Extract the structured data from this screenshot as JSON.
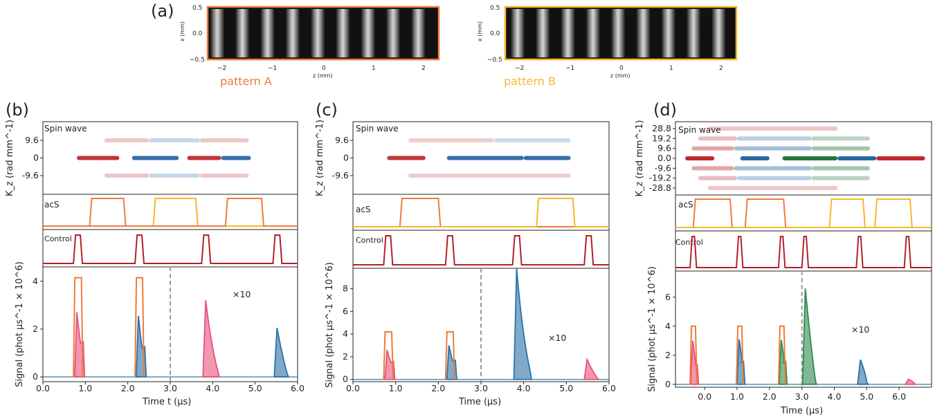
{
  "colors": {
    "pattern_a": "#f0793a",
    "pattern_b": "#f8b72a",
    "control": "#b22028",
    "pink": "#e8517a",
    "blue": "#2a72a8",
    "green": "#2e8a4e",
    "dashed": "#999999"
  },
  "top": {
    "panel_label": "(a)",
    "images": [
      {
        "caption": "pattern A",
        "border": "orange",
        "xlabel": "z (mm)",
        "ylabel": "x (mm)",
        "xticks": [
          "−2",
          "−1",
          "0",
          "1",
          "2"
        ],
        "yticks": [
          "0.5",
          "0.0",
          "−0.5"
        ]
      },
      {
        "caption": "pattern B",
        "border": "gold",
        "xlabel": "z (mm)",
        "ylabel": "x (mm)",
        "xticks": [
          "−2",
          "−1",
          "0",
          "1",
          "2"
        ],
        "yticks": [
          "0.5",
          "0.0",
          "−0.5"
        ]
      }
    ]
  },
  "panels": [
    {
      "label": "(b)",
      "spin_label": "Spin wave",
      "acs_label": "acS",
      "control_label": "Control",
      "kz_ticks": [
        "9.6",
        "0",
        "-9.6"
      ],
      "kz_ylabel": "K_z (rad mm^-1)",
      "signal_ylabel": "Signal (phot µs^-1 × 10^6)",
      "xlabel": "Time t (µs)",
      "xticks": [
        "0.0",
        "1.0",
        "2.0",
        "3.0",
        "4.0",
        "5.0",
        "6.0"
      ],
      "yticks": [
        "0",
        "2",
        "4"
      ],
      "multiplier": "×10"
    },
    {
      "label": "(c)",
      "spin_label": "Spin wave",
      "acs_label": "acS",
      "control_label": "Control",
      "kz_ticks": [
        "9.6",
        "0",
        "-9.6"
      ],
      "kz_ylabel": "K_z (rad mm^-1)",
      "signal_ylabel": "Signal (phot µs^-1 × 10^6)",
      "xlabel": "Time (µs)",
      "xticks": [
        "0.0",
        "1.0",
        "2.0",
        "3.0",
        "4.0",
        "5.0",
        "6.0"
      ],
      "yticks": [
        "0",
        "2",
        "4",
        "6",
        "8"
      ],
      "multiplier": "×10"
    },
    {
      "label": "(d)",
      "spin_label": "Spin wave",
      "acs_label": "acS",
      "control_label": "Control",
      "kz_ticks": [
        "28.8",
        "19.2",
        "9.6",
        "0.0",
        "-9.6",
        "-19.2",
        "-28.8"
      ],
      "kz_ylabel": "K_z (rad mm^-1)",
      "signal_ylabel": "Signal (phot µs^-1 × 10^6)",
      "xlabel": "Time (µs)",
      "xticks": [
        "0.0",
        "1.0",
        "2.0",
        "3.0",
        "4.0",
        "5.0",
        "6.0"
      ],
      "yticks": [
        "0",
        "2",
        "4",
        "6"
      ],
      "multiplier": "×10"
    }
  ],
  "chart_data": [
    {
      "panel": "(b)",
      "type": "line",
      "xlabel": "Time t (µs)",
      "ylabel": "Signal (phot µs^-1 × 10^6)",
      "xlim": [
        0,
        6
      ],
      "ylim": [
        -0.2,
        4.6
      ],
      "scaled_region_start": 3.0,
      "scaled_factor": "×10",
      "acs": [
        {
          "color": "pattern_a",
          "on": 1.1,
          "off": 1.95
        },
        {
          "color": "pattern_b",
          "on": 2.6,
          "off": 3.65
        },
        {
          "color": "pattern_a",
          "on": 4.3,
          "off": 5.2
        }
      ],
      "control": [
        {
          "on": 0.72,
          "off": 0.93
        },
        {
          "on": 2.17,
          "off": 2.38
        },
        {
          "on": 3.74,
          "off": 3.95
        },
        {
          "on": 5.42,
          "off": 5.63
        }
      ],
      "orange_pulses": [
        {
          "start": 0.72,
          "end": 0.94,
          "height": 4.15
        },
        {
          "start": 2.17,
          "end": 2.38,
          "height": 4.15
        }
      ],
      "signal_peaks": [
        {
          "color": "pink",
          "t": 0.75,
          "peak": 2.7,
          "width": 0.2,
          "tail": 1.4
        },
        {
          "color": "blue",
          "t": 2.2,
          "peak": 2.55,
          "width": 0.2,
          "tail": 1.2
        },
        {
          "color": "pink",
          "t": 3.77,
          "peak": 3.2,
          "width": 0.35,
          "tail": 0
        },
        {
          "color": "blue",
          "t": 5.45,
          "peak": 2.05,
          "width": 0.3,
          "tail": 0
        }
      ],
      "kz_streaks": [
        {
          "k": 1,
          "x0": 1.45,
          "x1": 4.85,
          "parts": [
            [
              "red",
              1.45,
              2.5
            ],
            [
              "blue",
              2.5,
              3.7
            ],
            [
              "red",
              3.7,
              4.85
            ]
          ],
          "opacity": 0.25
        },
        {
          "k": 0,
          "x0": 0.8,
          "x1": 4.9,
          "parts": [
            [
              "red",
              0.8,
              1.8
            ],
            [
              "blue",
              2.1,
              3.2
            ],
            [
              "red",
              3.4,
              4.2
            ],
            [
              "blue",
              4.2,
              4.9
            ]
          ],
          "opacity": 0.9
        },
        {
          "k": -1,
          "x0": 1.45,
          "x1": 4.85,
          "parts": [
            [
              "red",
              1.45,
              2.5
            ],
            [
              "blue",
              2.5,
              3.7
            ],
            [
              "red",
              3.7,
              4.85
            ]
          ],
          "opacity": 0.25
        }
      ]
    },
    {
      "panel": "(c)",
      "type": "line",
      "xlabel": "Time (µs)",
      "ylabel": "Signal (phot µs^-1 × 10^6)",
      "xlim": [
        0,
        6
      ],
      "ylim": [
        -0.2,
        9.8
      ],
      "scaled_region_start": 3.0,
      "scaled_factor": "×10",
      "acs": [
        {
          "color": "pattern_a",
          "on": 1.1,
          "off": 2.05
        },
        {
          "color": "pattern_b",
          "on": 4.3,
          "off": 5.2
        }
      ],
      "control": [
        {
          "on": 0.72,
          "off": 0.93
        },
        {
          "on": 2.17,
          "off": 2.38
        },
        {
          "on": 3.74,
          "off": 3.95
        },
        {
          "on": 5.42,
          "off": 5.63
        }
      ],
      "orange_pulses": [
        {
          "start": 0.72,
          "end": 0.94,
          "height": 4.2
        },
        {
          "start": 2.17,
          "end": 2.38,
          "height": 4.2
        }
      ],
      "signal_peaks": [
        {
          "color": "pink",
          "t": 0.75,
          "peak": 2.6,
          "width": 0.2,
          "tail": 1.5
        },
        {
          "color": "blue",
          "t": 2.2,
          "peak": 3.0,
          "width": 0.2,
          "tail": 1.6
        },
        {
          "color": "blue",
          "t": 3.77,
          "peak": 9.8,
          "width": 0.38,
          "tail": 0
        },
        {
          "color": "pink",
          "t": 5.42,
          "peak": 1.75,
          "width": 0.3,
          "tail": 0
        }
      ],
      "kz_streaks": [
        {
          "k": 1,
          "x0": 1.3,
          "x1": 5.1,
          "parts": [
            [
              "red",
              1.3,
              3.3
            ],
            [
              "blue",
              3.3,
              5.1
            ]
          ],
          "opacity": 0.22
        },
        {
          "k": 0,
          "x0": 0.8,
          "x1": 5.1,
          "parts": [
            [
              "red",
              0.8,
              1.7
            ],
            [
              "blue",
              2.2,
              4.0
            ],
            [
              "blue",
              4.0,
              5.1
            ]
          ],
          "opacity": 0.9
        },
        {
          "k": -1,
          "x0": 1.3,
          "x1": 5.1,
          "parts": [
            [
              "red",
              1.3,
              5.1
            ]
          ],
          "opacity": 0.22
        }
      ]
    },
    {
      "panel": "(d)",
      "type": "line",
      "xlabel": "Time (µs)",
      "ylabel": "Signal (phot µs^-1 × 10^6)",
      "xlim": [
        -0.9,
        7.0
      ],
      "ylim": [
        -0.2,
        7.8
      ],
      "scaled_region_start": 3.0,
      "scaled_factor": "×10",
      "acs": [
        {
          "color": "pattern_a",
          "on": -0.35,
          "off": 0.85
        },
        {
          "color": "pattern_a",
          "on": 1.25,
          "off": 2.5
        },
        {
          "color": "pattern_b",
          "on": 3.85,
          "off": 4.95
        },
        {
          "color": "pattern_b",
          "on": 5.25,
          "off": 6.4
        }
      ],
      "control": [
        {
          "on": -0.45,
          "off": -0.25
        },
        {
          "on": 0.98,
          "off": 1.18
        },
        {
          "on": 2.28,
          "off": 2.48
        },
        {
          "on": 3.0,
          "off": 3.2
        },
        {
          "on": 4.68,
          "off": 4.88
        },
        {
          "on": 6.16,
          "off": 6.36
        }
      ],
      "orange_pulses": [
        {
          "start": -0.45,
          "end": -0.24,
          "height": 4.0
        },
        {
          "start": 0.98,
          "end": 1.19,
          "height": 4.0
        },
        {
          "start": 2.28,
          "end": 2.49,
          "height": 4.0
        }
      ],
      "signal_peaks": [
        {
          "color": "pink",
          "t": -0.43,
          "peak": 3.0,
          "width": 0.2,
          "tail": 1.3
        },
        {
          "color": "blue",
          "t": 1.0,
          "peak": 3.1,
          "width": 0.2,
          "tail": 1.5
        },
        {
          "color": "green",
          "t": 2.3,
          "peak": 3.05,
          "width": 0.2,
          "tail": 1.5
        },
        {
          "color": "green",
          "t": 3.02,
          "peak": 6.6,
          "width": 0.38,
          "tail": 0
        },
        {
          "color": "blue",
          "t": 4.72,
          "peak": 1.7,
          "width": 0.28,
          "tail": 0
        },
        {
          "color": "pink",
          "t": 6.2,
          "peak": 0.35,
          "width": 0.28,
          "tail": 0
        }
      ],
      "kz_streaks": [
        {
          "k": 3,
          "x0": 0.1,
          "x1": 4.1,
          "parts": [
            [
              "red",
              0.1,
              4.1
            ]
          ],
          "opacity": 0.25
        },
        {
          "k": 2,
          "x0": -0.2,
          "x1": 5.1,
          "parts": [
            [
              "red",
              -0.2,
              1.0
            ],
            [
              "blue",
              1.0,
              3.3
            ],
            [
              "green",
              3.3,
              5.1
            ]
          ],
          "opacity": 0.3
        },
        {
          "k": 1,
          "x0": -0.4,
          "x1": 5.1,
          "parts": [
            [
              "red",
              -0.4,
              0.9
            ],
            [
              "blue",
              0.9,
              3.3
            ],
            [
              "green",
              3.3,
              5.1
            ]
          ],
          "opacity": 0.4
        },
        {
          "k": 0,
          "x0": -0.6,
          "x1": 6.8,
          "parts": [
            [
              "red",
              -0.6,
              0.3
            ],
            [
              "blue",
              1.1,
              2.0
            ],
            [
              "green",
              2.4,
              4.1
            ],
            [
              "blue",
              4.1,
              5.3
            ],
            [
              "red",
              5.3,
              6.8
            ]
          ],
          "opacity": 0.95
        },
        {
          "k": -1,
          "x0": -0.4,
          "x1": 5.1,
          "parts": [
            [
              "red",
              -0.4,
              0.9
            ],
            [
              "blue",
              0.9,
              3.3
            ],
            [
              "green",
              3.3,
              5.1
            ]
          ],
          "opacity": 0.4
        },
        {
          "k": -2,
          "x0": -0.2,
          "x1": 5.1,
          "parts": [
            [
              "red",
              -0.2,
              1.0
            ],
            [
              "blue",
              1.0,
              3.3
            ],
            [
              "green",
              3.3,
              5.1
            ]
          ],
          "opacity": 0.3
        },
        {
          "k": -3,
          "x0": 0.1,
          "x1": 4.1,
          "parts": [
            [
              "red",
              0.1,
              4.1
            ]
          ],
          "opacity": 0.25
        }
      ]
    }
  ]
}
